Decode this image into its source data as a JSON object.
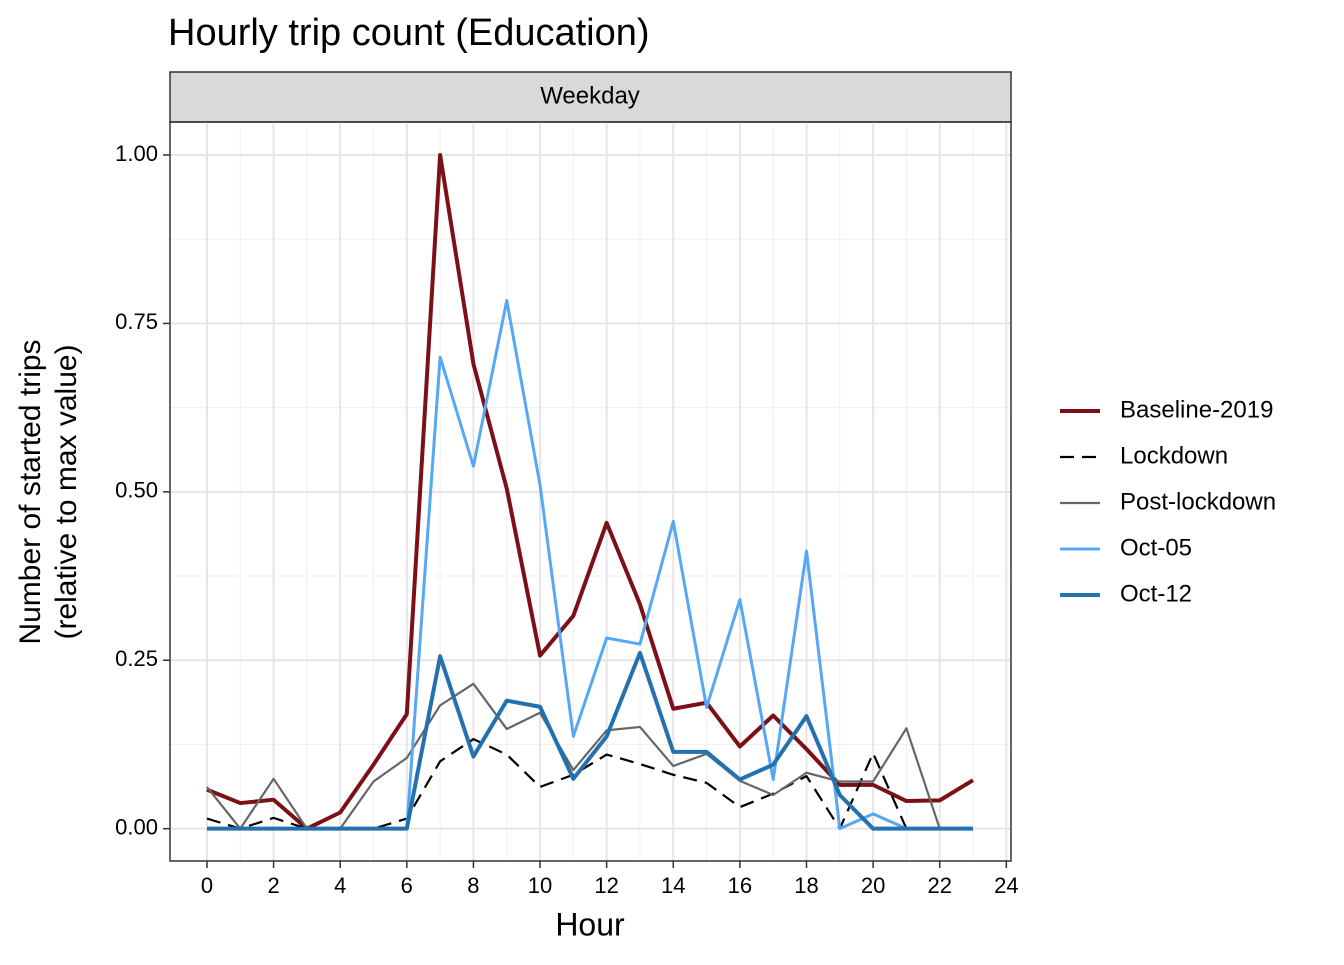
{
  "chart_data": {
    "type": "line",
    "title": "Hourly trip count (Education)",
    "facet_label": "Weekday",
    "x_label": "Hour",
    "y_label": [
      "Number of started trips",
      "(relative to max value)"
    ],
    "x": [
      0,
      1,
      2,
      3,
      4,
      5,
      6,
      7,
      8,
      9,
      10,
      11,
      12,
      13,
      14,
      15,
      16,
      17,
      18,
      19,
      20,
      21,
      22,
      23
    ],
    "xlim": [
      -1.11,
      24.14
    ],
    "xticks": [
      0,
      2,
      4,
      6,
      8,
      10,
      12,
      14,
      16,
      18,
      20,
      22,
      24
    ],
    "ylim": [
      -0.048,
      1.049
    ],
    "yticks": [
      {
        "value": 0,
        "label": "0.00"
      },
      {
        "value": 0.25,
        "label": "0.25"
      },
      {
        "value": 0.5,
        "label": "0.50"
      },
      {
        "value": 0.75,
        "label": "0.75"
      },
      {
        "value": 1,
        "label": "1.00"
      }
    ],
    "grid": true,
    "series": [
      {
        "name": "Baseline-2019",
        "color": "#7b1016",
        "values": [
          0.058,
          0.038,
          0.043,
          0,
          0.024,
          0.095,
          0.17,
          1.0,
          0.69,
          0.505,
          0.257,
          0.316,
          0.454,
          0.333,
          0.178,
          0.187,
          0.122,
          0.168,
          0.118,
          0.065,
          0.065,
          0.041,
          0.042,
          0.072
        ]
      },
      {
        "name": "Lockdown",
        "color": "#000000",
        "dashed": true,
        "values": [
          0.015,
          0,
          0.016,
          0,
          0,
          0,
          0.015,
          0.1,
          0.133,
          0.11,
          0.062,
          0.08,
          0.11,
          0.096,
          0.08,
          0.068,
          0.032,
          0.052,
          0.078,
          0,
          0.112,
          0,
          0,
          0
        ]
      },
      {
        "name": "Post-lockdown",
        "color": "#666666",
        "values": [
          0.062,
          0,
          0.074,
          0,
          0,
          0.07,
          0.105,
          0.183,
          0.215,
          0.148,
          0.172,
          0.087,
          0.146,
          0.151,
          0.093,
          0.111,
          0.071,
          0.05,
          0.083,
          0.07,
          0.07,
          0.149,
          0,
          0
        ]
      },
      {
        "name": "Oct-05",
        "color": "#56a8f5",
        "values": [
          0,
          0,
          0,
          0,
          0,
          0,
          0,
          0.7,
          0.538,
          0.784,
          0.51,
          0.137,
          0.283,
          0.274,
          0.456,
          0.18,
          0.34,
          0.073,
          0.412,
          0,
          0.022,
          0,
          0,
          0
        ]
      },
      {
        "name": "Oct-12",
        "color": "#2471b0",
        "values": [
          0,
          0,
          0,
          0,
          0,
          0,
          0,
          0.256,
          0.107,
          0.19,
          0.181,
          0.074,
          0.137,
          0.261,
          0.114,
          0.114,
          0.073,
          0.095,
          0.167,
          0.05,
          0,
          0,
          0,
          0
        ]
      }
    ]
  }
}
